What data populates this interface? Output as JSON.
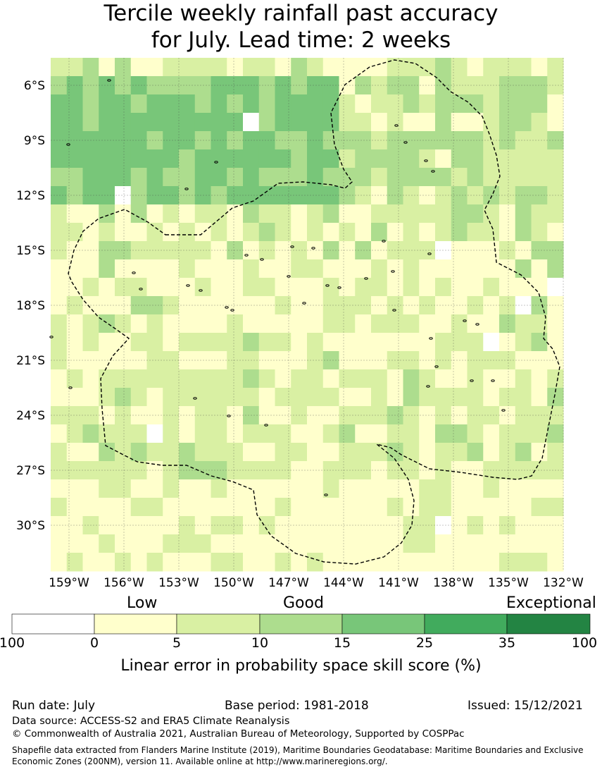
{
  "title": {
    "line1": "Tercile weekly rainfall past accuracy",
    "line2": "for July. Lead time: 2 weeks"
  },
  "map": {
    "lat_ticks": [
      "6°S",
      "9°S",
      "12°S",
      "15°S",
      "18°S",
      "21°S",
      "24°S",
      "27°S",
      "30°S"
    ],
    "lon_ticks": [
      "159°W",
      "156°W",
      "153°W",
      "150°W",
      "147°W",
      "144°W",
      "141°W",
      "138°W",
      "135°W",
      "132°W"
    ],
    "lat_range": [
      -32.5,
      -4.5
    ],
    "lon_range": [
      -160,
      -132
    ],
    "colors": {
      "no_skill": "#ffffff",
      "c0_5": "#ffffcc",
      "c5_10": "#d9f0a3",
      "c10_15": "#addd8e",
      "c15_25": "#78c679",
      "c25_35": "#41ab5d",
      "c35_100": "#238443",
      "grid": "#444444",
      "boundary": "#000000"
    }
  },
  "legend": {
    "category_labels": [
      "Low",
      "Good",
      "Exceptional"
    ],
    "ticks": [
      "100",
      "0",
      "5",
      "10",
      "15",
      "25",
      "35",
      "100"
    ],
    "title": "Linear error in probability space skill score (%)"
  },
  "footer": {
    "run_date": "Run date: July",
    "base_period": "Base period: 1981-2018",
    "issued": "Issued: 15/12/2021",
    "data_source": "Data source: ACCESS-S2 and ERA5 Climate Reanalysis",
    "copyright": "© Commonwealth of Australia 2021, Australian Bureau of Meteorology, Supported by COSPPac",
    "shapefile_line1": "Shapefile data extracted from Flanders Marine Institute (2019), Maritime Boundaries Geodatabase: Maritime Boundaries and Exclusive",
    "shapefile_line2": "Economic Zones (200NM), version 11. Available online at http://www.marineregions.org/."
  }
}
